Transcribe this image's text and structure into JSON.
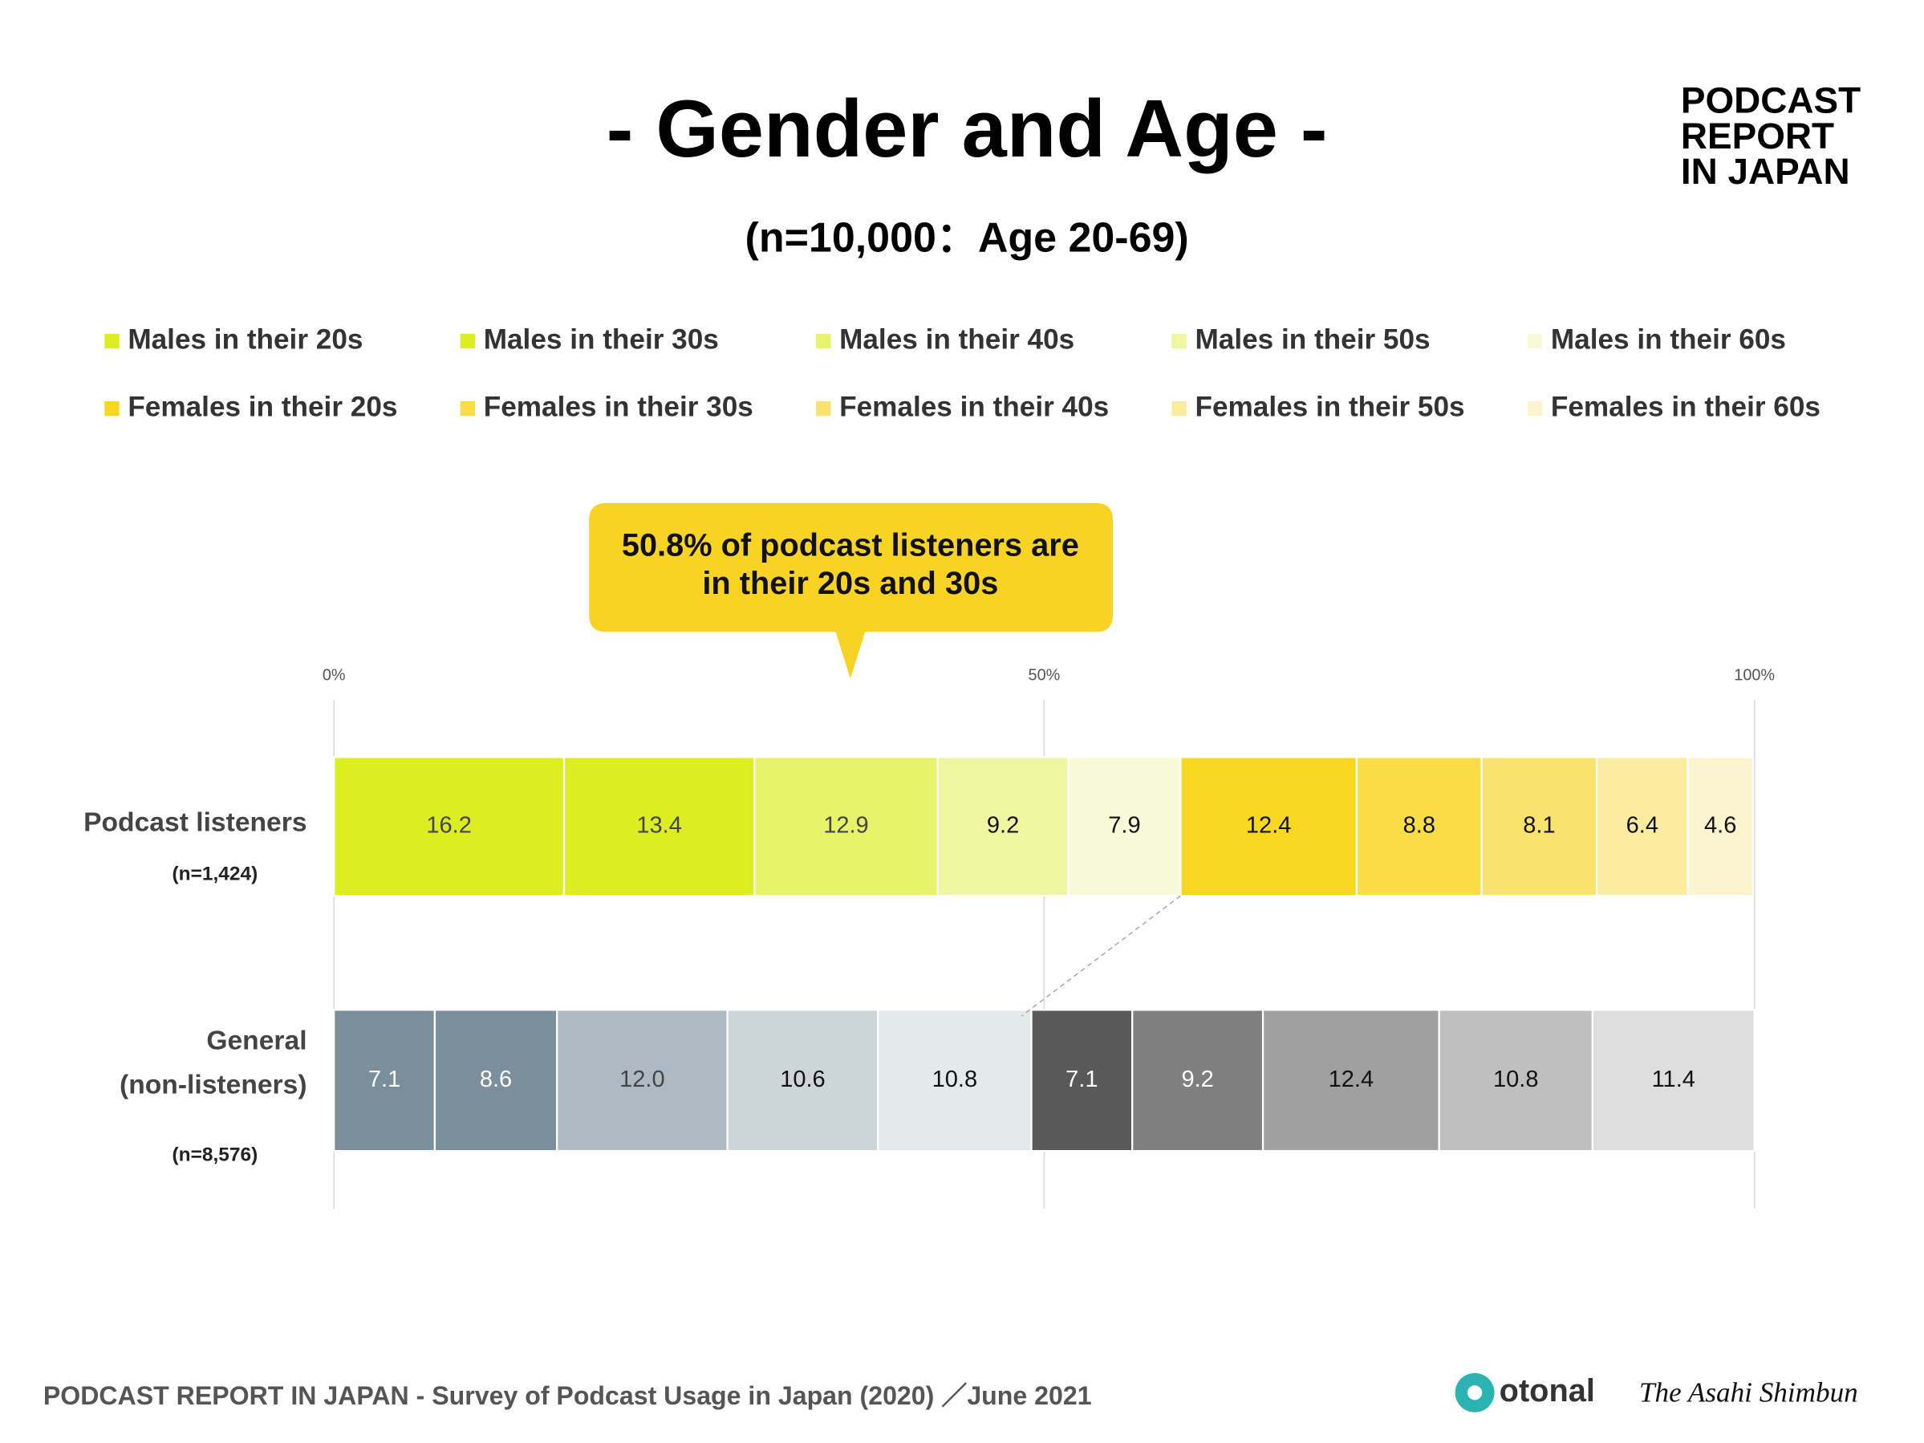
{
  "chart_data": {
    "type": "stacked-bar-horizontal",
    "title": "- Gender and Age -",
    "subtitle": "(n=10,000：Age 20-69)",
    "brand": [
      "PODCAST",
      "REPORT",
      "IN JAPAN"
    ],
    "annotation": [
      "50.8% of podcast listeners are",
      "in their 20s and 30s"
    ],
    "categories": [
      [
        "Podcast listeners"
      ],
      [
        "General",
        "(non-listeners)"
      ]
    ],
    "category_notes": [
      "(n=1,424)",
      "(n=8,576)"
    ],
    "xlim": [
      0,
      100
    ],
    "xticks": [
      {
        "value": 0,
        "label": "0%"
      },
      {
        "value": 50,
        "label": "50%"
      },
      {
        "value": 100,
        "label": "100%"
      }
    ],
    "grid": true,
    "series": [
      {
        "name": "Males in their 20s",
        "colors": [
          "#dcee22",
          "#7b8e9c"
        ],
        "values": [
          16.2,
          7.1
        ]
      },
      {
        "name": "Males in their 30s",
        "colors": [
          "#dcee22",
          "#7b8e9c"
        ],
        "values": [
          13.4,
          8.6
        ]
      },
      {
        "name": "Males in their 40s",
        "colors": [
          "#e7f36a",
          "#adbac3"
        ],
        "values": [
          12.9,
          12.0
        ],
        "value_labels": [
          "12.9",
          "12.0"
        ]
      },
      {
        "name": "Males in their 50s",
        "colors": [
          "#eef7a0",
          "#ccd5da"
        ],
        "values": [
          9.2,
          10.6
        ]
      },
      {
        "name": "Males in their 60s",
        "colors": [
          "#f6fad6",
          "#e4e9ec"
        ],
        "values": [
          7.9,
          10.8
        ]
      },
      {
        "name": "Females in their 20s",
        "colors": [
          "#f8d723",
          "#595959"
        ],
        "values": [
          12.4,
          7.1
        ]
      },
      {
        "name": "Females in their 30s",
        "colors": [
          "#f9dc47",
          "#7f7f7f"
        ],
        "values": [
          8.8,
          9.2
        ]
      },
      {
        "name": "Females in their 40s",
        "colors": [
          "#f9e36e",
          "#a0a0a0"
        ],
        "values": [
          8.1,
          12.4
        ]
      },
      {
        "name": "Females in their 50s",
        "colors": [
          "#faeb9e",
          "#bfbfbf"
        ],
        "values": [
          6.4,
          10.8
        ]
      },
      {
        "name": "Females in their 60s",
        "colors": [
          "#fcf4cf",
          "#dedede"
        ],
        "values": [
          4.6,
          11.4
        ]
      }
    ],
    "footer": "PODCAST REPORT IN JAPAN - Survey of Podcast Usage in Japan (2020) ／June 2021",
    "logos": [
      "otonal",
      "The Asahi Shimbun"
    ]
  }
}
